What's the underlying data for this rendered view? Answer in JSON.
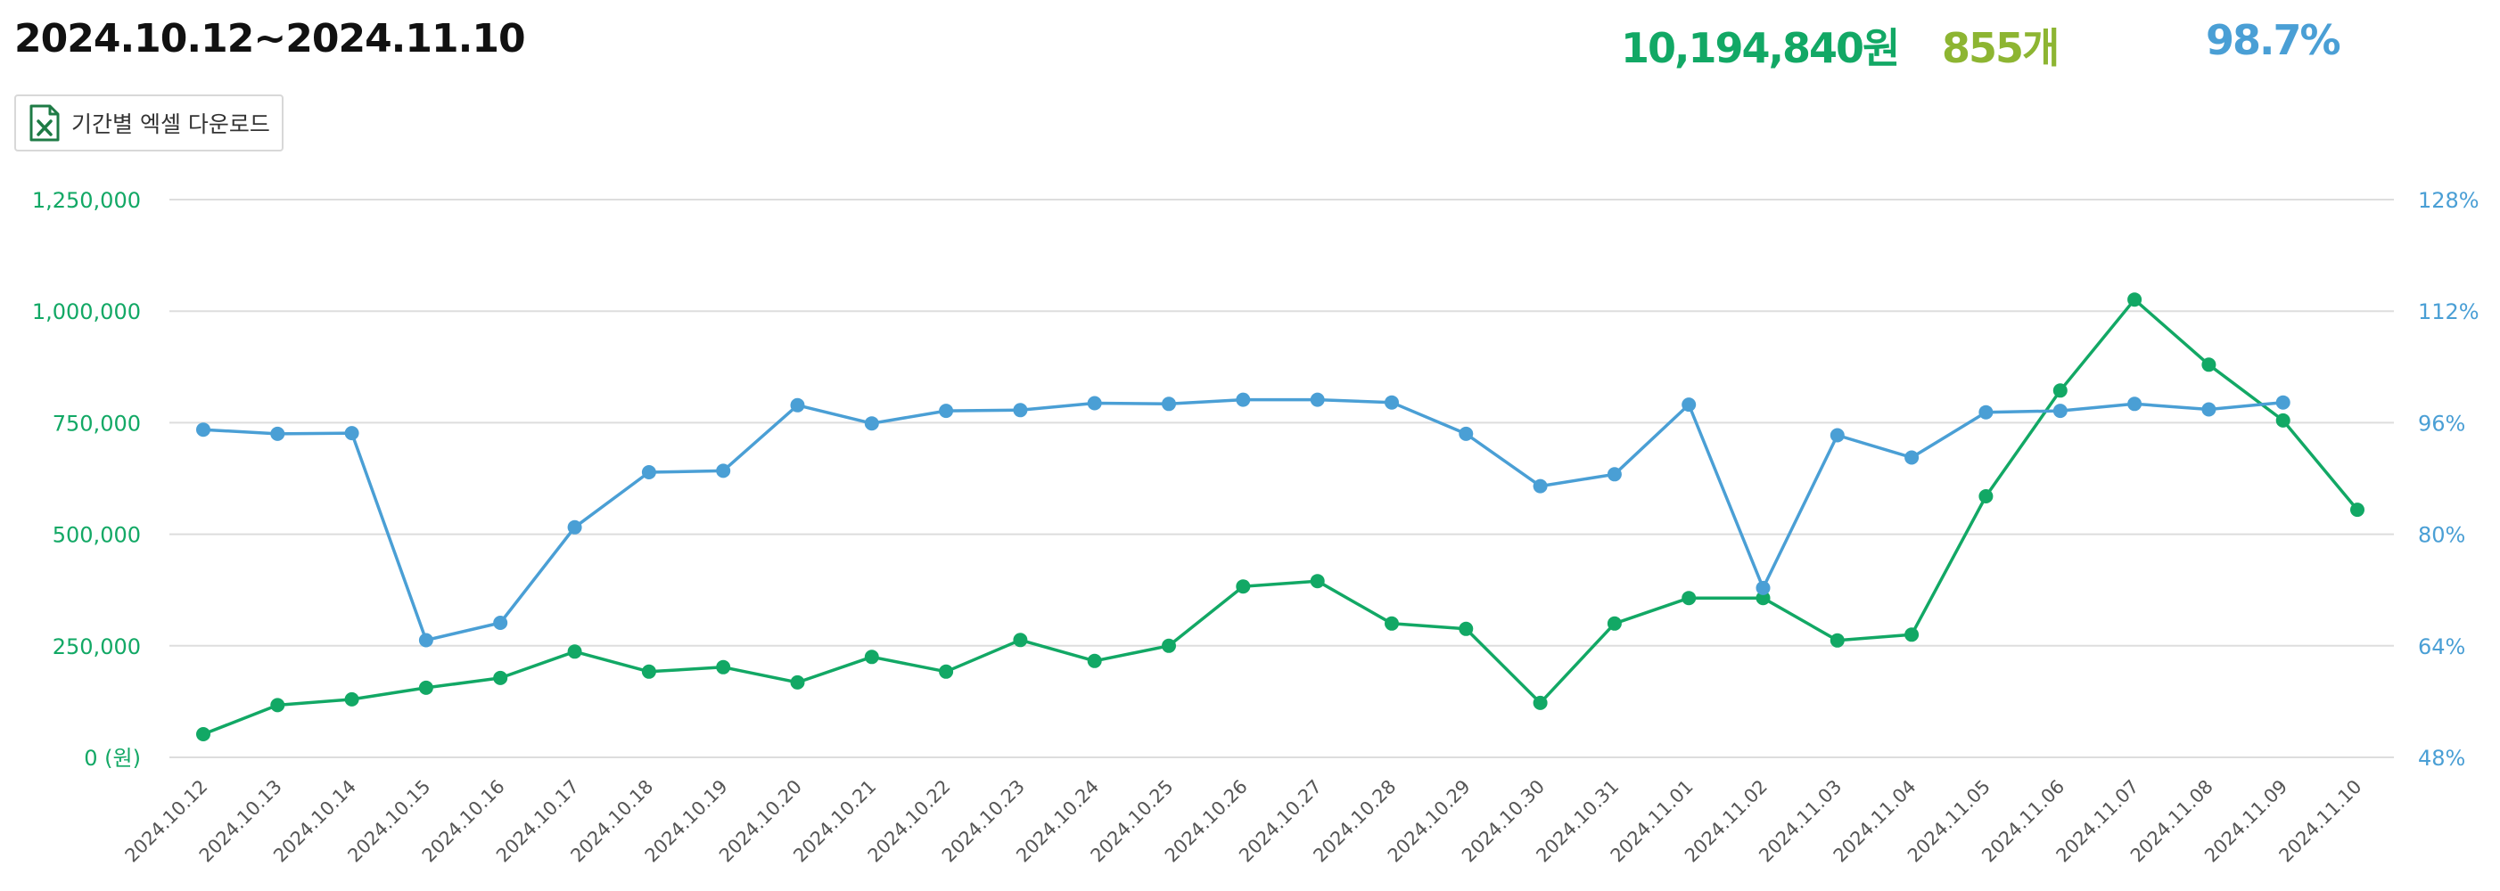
{
  "header": {
    "date_range": "2024.10.12~2024.11.10",
    "total_sales": "10,194,840원",
    "total_count": "855개",
    "rate": "98.7%"
  },
  "toolbar": {
    "download_label": "기간별 엑셀 다운로드",
    "download_icon": "excel-file-icon"
  },
  "colors": {
    "sales": "#12a865",
    "count": "#8db532",
    "rate": "#4a9fd5",
    "grid": "#dddddd"
  },
  "chart_data": {
    "type": "line",
    "categories": [
      "2024.10.12",
      "2024.10.13",
      "2024.10.14",
      "2024.10.15",
      "2024.10.16",
      "2024.10.17",
      "2024.10.18",
      "2024.10.19",
      "2024.10.20",
      "2024.10.21",
      "2024.10.22",
      "2024.10.23",
      "2024.10.24",
      "2024.10.25",
      "2024.10.26",
      "2024.10.27",
      "2024.10.28",
      "2024.10.29",
      "2024.10.30",
      "2024.10.31",
      "2024.11.01",
      "2024.11.02",
      "2024.11.03",
      "2024.11.04",
      "2024.11.05",
      "2024.11.06",
      "2024.11.07",
      "2024.11.08",
      "2024.11.09",
      "2024.11.10"
    ],
    "series": [
      {
        "axis": "left",
        "color": "#12a865",
        "values": [
          52000,
          117000,
          130000,
          156000,
          178000,
          237000,
          192000,
          202000,
          168000,
          225000,
          192000,
          263000,
          216000,
          250000,
          383000,
          395000,
          300000,
          288000,
          122000,
          300000,
          357000,
          357000,
          262000,
          275000,
          585000,
          822000,
          1026000,
          880000,
          755000,
          555000
        ]
      },
      {
        "axis": "right",
        "color": "#4a9fd5",
        "values": [
          95.0,
          94.4,
          94.5,
          64.8,
          67.3,
          81.0,
          88.9,
          89.1,
          98.5,
          95.9,
          97.7,
          97.8,
          98.8,
          98.7,
          99.3,
          99.3,
          98.9,
          94.4,
          86.9,
          88.6,
          98.6,
          72.3,
          94.2,
          91.0,
          97.5,
          97.7,
          98.7,
          97.9,
          98.9,
          null
        ]
      }
    ],
    "y_left": {
      "ylim": [
        0,
        1250000
      ],
      "ticks": [
        "0 (원)",
        "250,000",
        "500,000",
        "750,000",
        "1,000,000",
        "1,250,000"
      ]
    },
    "y_right": {
      "ylim": [
        48,
        128
      ],
      "ticks": [
        "48%",
        "64%",
        "80%",
        "96%",
        "112%",
        "128%"
      ]
    },
    "grid": true,
    "legend": "none"
  }
}
